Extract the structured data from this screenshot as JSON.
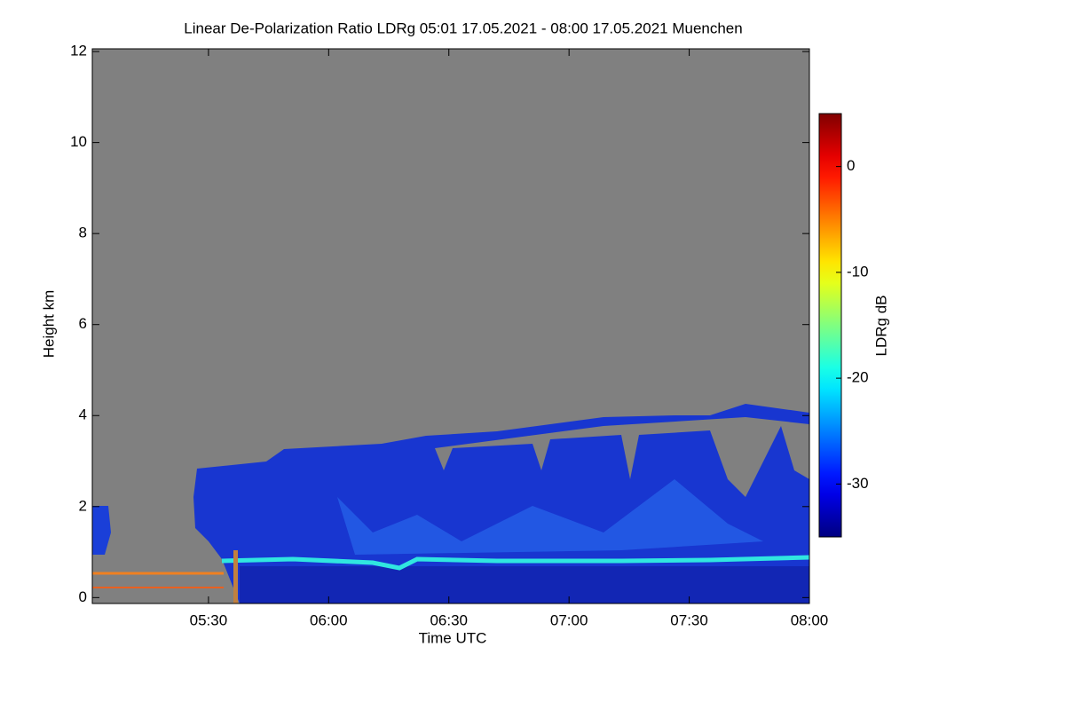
{
  "chart_data": {
    "type": "heatmap",
    "title": "Linear De-Polarization Ratio LDRg   05:01 17.05.2021 - 08:00 17.05.2021 Muenchen",
    "xlabel": "Time UTC",
    "ylabel": "Height km",
    "xlim": [
      301,
      480
    ],
    "xticks": [
      {
        "value": 330,
        "label": "05:30"
      },
      {
        "value": 360,
        "label": "06:00"
      },
      {
        "value": 390,
        "label": "06:30"
      },
      {
        "value": 420,
        "label": "07:00"
      },
      {
        "value": 450,
        "label": "07:30"
      },
      {
        "value": 480,
        "label": "08:00"
      }
    ],
    "ylim": [
      -0.13,
      12.06
    ],
    "yticks": [
      0,
      2,
      4,
      6,
      8,
      10,
      12
    ],
    "colorbar": {
      "label": "LDRg dB",
      "clim": [
        -35,
        5
      ],
      "ticks": [
        0,
        -10,
        -20,
        -30
      ],
      "colormap": "jet"
    }
  }
}
